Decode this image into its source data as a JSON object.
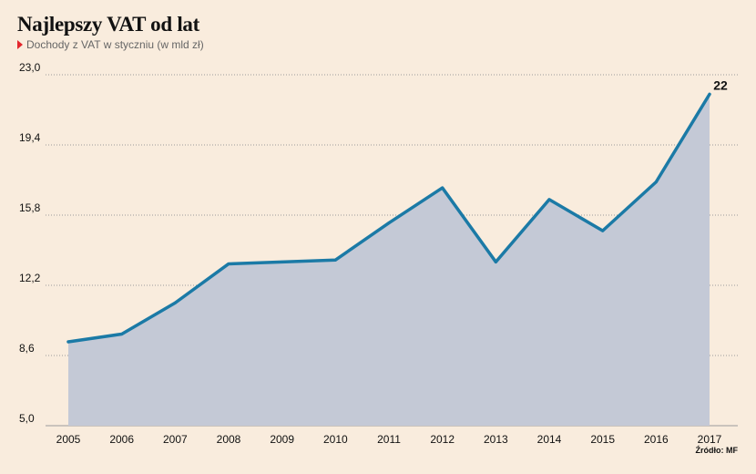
{
  "title": "Najlepszy VAT od lat",
  "subtitle": "Dochody z VAT w styczniu (w mld zł)",
  "source": "Źródło: MF",
  "colors": {
    "background": "#f9ecdd",
    "line": "#1b7aa6",
    "area": "#c4c9d6",
    "subtitle_marker": "#e3262c"
  },
  "chart_data": {
    "type": "area",
    "title": "Najlepszy VAT od lat",
    "subtitle": "Dochody z VAT w styczniu (w mld zł)",
    "x": [
      "2005",
      "2006",
      "2007",
      "2008",
      "2009",
      "2010",
      "2011",
      "2012",
      "2013",
      "2014",
      "2015",
      "2016",
      "2017"
    ],
    "series": [
      {
        "values": [
          9.3,
          9.7,
          11.3,
          13.3,
          13.4,
          13.5,
          15.4,
          17.2,
          13.4,
          16.6,
          15.0,
          17.5,
          22.0
        ]
      }
    ],
    "yticks": [
      "5,0",
      "8,6",
      "12,2",
      "15,8",
      "19,4",
      "23,0"
    ],
    "ylim": [
      5.0,
      23.0
    ],
    "data_labels": [
      {
        "x": "2017",
        "text": "22"
      }
    ],
    "grid": "horizontal dotted",
    "legend": "none"
  }
}
